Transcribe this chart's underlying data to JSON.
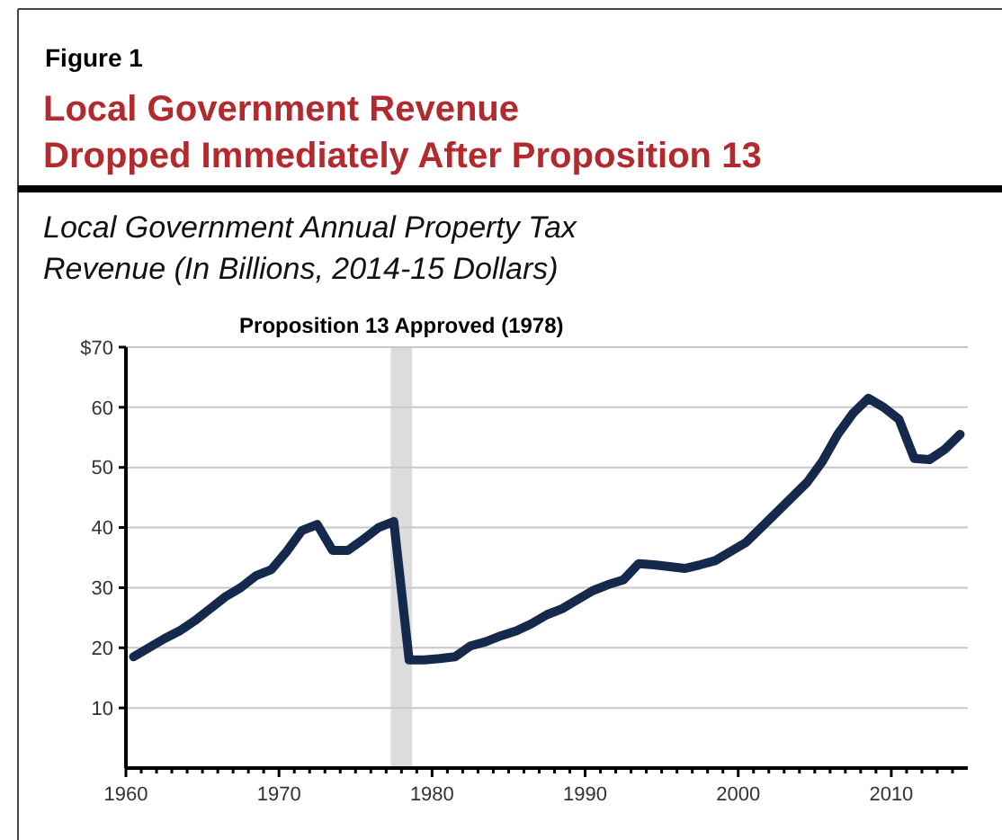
{
  "chart_data": {
    "type": "line",
    "title": "Local Government Revenue\nDropped Immediately After Proposition 13",
    "subtitle": "Local Government Annual Property Tax\nRevenue (In Billions, 2014-15 Dollars)",
    "annotations": [
      "Figure 1"
    ],
    "x": [
      1960.5,
      1961.5,
      1962.5,
      1963.5,
      1964.5,
      1965.5,
      1966.5,
      1967.5,
      1968.5,
      1969.5,
      1970.5,
      1971.5,
      1972.5,
      1973.5,
      1974.5,
      1975.5,
      1976.5,
      1977.5,
      1978.5,
      1979.5,
      1980.5,
      1981.5,
      1982.5,
      1983.5,
      1984.5,
      1985.5,
      1986.5,
      1987.5,
      1988.5,
      1989.5,
      1990.5,
      1991.5,
      1992.5,
      1993.5,
      1994.5,
      1995.5,
      1996.5,
      1997.5,
      1998.5,
      1999.5,
      2000.5,
      2001.5,
      2002.5,
      2003.5,
      2004.5,
      2005.5,
      2006.5,
      2007.5,
      2008.5,
      2009.5,
      2010.5,
      2011.5,
      2012.5,
      2013.5,
      2014.5
    ],
    "series": [
      {
        "color": "#14294b",
        "values": [
          18.5,
          20,
          21.5,
          22.8,
          24.5,
          26.5,
          28.5,
          30,
          32,
          33,
          36,
          39.5,
          40.5,
          36.2,
          36.2,
          38,
          40,
          41,
          18,
          18,
          18.2,
          18.5,
          20.3,
          21,
          22,
          22.8,
          24,
          25.5,
          26.5,
          28,
          29.5,
          30.5,
          31.3,
          34,
          33.8,
          33.5,
          33.2,
          33.8,
          34.5,
          36,
          37.5,
          40,
          42.5,
          45,
          47.5,
          51,
          55.5,
          59,
          61.5,
          60,
          58,
          51.5,
          51.3,
          53,
          55.5
        ]
      }
    ],
    "xlim": [
      1960,
      2015
    ],
    "xticks": [
      1960,
      {
        "value": 1961,
        "label": null
      },
      {
        "value": 1962,
        "label": null
      },
      {
        "value": 1963,
        "label": null
      },
      {
        "value": 1964,
        "label": null
      },
      {
        "value": 1965,
        "label": null
      },
      {
        "value": 1966,
        "label": null
      },
      {
        "value": 1967,
        "label": null
      },
      {
        "value": 1968,
        "label": null
      },
      {
        "value": 1969,
        "label": null
      },
      1970,
      {
        "value": 1971,
        "label": null
      },
      {
        "value": 1972,
        "label": null
      },
      {
        "value": 1973,
        "label": null
      },
      {
        "value": 1974,
        "label": null
      },
      {
        "value": 1975,
        "label": null
      },
      {
        "value": 1976,
        "label": null
      },
      {
        "value": 1977,
        "label": null
      },
      {
        "value": 1978,
        "label": null
      },
      {
        "value": 1979,
        "label": null
      },
      1980,
      {
        "value": 1981,
        "label": null
      },
      {
        "value": 1982,
        "label": null
      },
      {
        "value": 1983,
        "label": null
      },
      {
        "value": 1984,
        "label": null
      },
      {
        "value": 1985,
        "label": null
      },
      {
        "value": 1986,
        "label": null
      },
      {
        "value": 1987,
        "label": null
      },
      {
        "value": 1988,
        "label": null
      },
      {
        "value": 1989,
        "label": null
      },
      1990,
      {
        "value": 1991,
        "label": null
      },
      {
        "value": 1992,
        "label": null
      },
      {
        "value": 1993,
        "label": null
      },
      {
        "value": 1994,
        "label": null
      },
      {
        "value": 1995,
        "label": null
      },
      {
        "value": 1996,
        "label": null
      },
      {
        "value": 1997,
        "label": null
      },
      {
        "value": 1998,
        "label": null
      },
      {
        "value": 1999,
        "label": null
      },
      2000,
      {
        "value": 2001,
        "label": null
      },
      {
        "value": 2002,
        "label": null
      },
      {
        "value": 2003,
        "label": null
      },
      {
        "value": 2004,
        "label": null
      },
      {
        "value": 2005,
        "label": null
      },
      {
        "value": 2006,
        "label": null
      },
      {
        "value": 2007,
        "label": null
      },
      {
        "value": 2008,
        "label": null
      },
      {
        "value": 2009,
        "label": null
      },
      2010,
      {
        "value": 2011,
        "label": null
      },
      {
        "value": 2012,
        "label": null
      },
      {
        "value": 2013,
        "label": null
      },
      {
        "value": 2014,
        "label": null
      }
    ],
    "ylim": [
      0,
      70
    ],
    "yticks": [
      10,
      20,
      30,
      40,
      50,
      60,
      {
        "value": 70,
        "label": "$70"
      }
    ],
    "bands": [
      {
        "axis": "x",
        "from": 1977.3,
        "to": 1978.7,
        "label": "Proposition 13 Approved (1978)",
        "color": "#dcdcdc"
      }
    ],
    "grid": "y",
    "marker": "none",
    "line_style": "solid"
  }
}
